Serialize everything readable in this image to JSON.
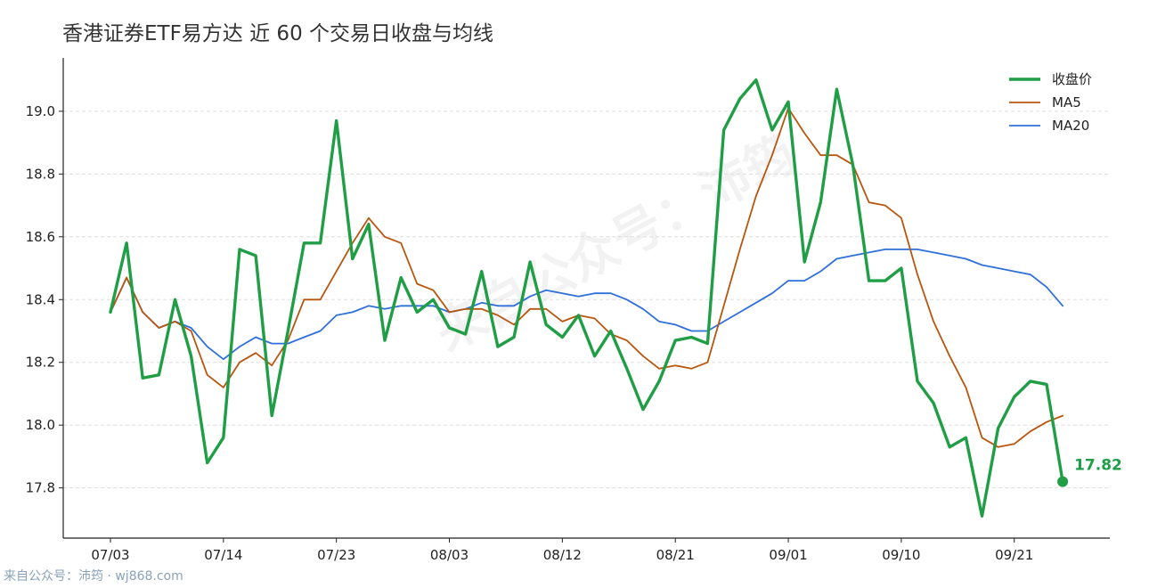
{
  "chart_data": {
    "type": "line",
    "title": "香港证券ETF易方达 近 60 个交易日收盘与均线",
    "xlabel": "",
    "ylabel": "",
    "ylim": [
      17.64,
      19.17
    ],
    "yticks": [
      17.8,
      18.0,
      18.2,
      18.4,
      18.6,
      18.8,
      19.0
    ],
    "xticks": [
      {
        "index": 0,
        "label": "07/03"
      },
      {
        "index": 7,
        "label": "07/14"
      },
      {
        "index": 14,
        "label": "07/23"
      },
      {
        "index": 21,
        "label": "08/03"
      },
      {
        "index": 28,
        "label": "08/12"
      },
      {
        "index": 35,
        "label": "08/21"
      },
      {
        "index": 42,
        "label": "09/01"
      },
      {
        "index": 49,
        "label": "09/10"
      },
      {
        "index": 56,
        "label": "09/21"
      }
    ],
    "grid": "horizontal dashed",
    "legend_position": "top-right",
    "series": [
      {
        "name": "收盘价",
        "color": "#1f9e46",
        "values": [
          18.36,
          18.58,
          18.15,
          18.16,
          18.4,
          18.22,
          17.88,
          17.96,
          18.56,
          18.54,
          18.03,
          18.3,
          18.58,
          18.58,
          18.97,
          18.53,
          18.64,
          18.27,
          18.47,
          18.36,
          18.4,
          18.31,
          18.29,
          18.49,
          18.25,
          18.28,
          18.52,
          18.32,
          18.28,
          18.35,
          18.22,
          18.3,
          18.18,
          18.05,
          18.14,
          18.27,
          18.28,
          18.26,
          18.94,
          19.04,
          19.1,
          18.94,
          19.03,
          18.52,
          18.71,
          19.07,
          18.83,
          18.46,
          18.46,
          18.5,
          18.14,
          18.07,
          17.93,
          17.96,
          17.71,
          17.99,
          18.09,
          18.14,
          18.13,
          17.82
        ]
      },
      {
        "name": "MA5",
        "color": "#b8560f",
        "values": [
          18.36,
          18.47,
          18.36,
          18.31,
          18.33,
          18.3,
          18.16,
          18.12,
          18.2,
          18.23,
          18.19,
          18.27,
          18.4,
          18.4,
          18.49,
          18.58,
          18.66,
          18.6,
          18.58,
          18.45,
          18.43,
          18.36,
          18.37,
          18.37,
          18.35,
          18.32,
          18.37,
          18.37,
          18.33,
          18.35,
          18.34,
          18.29,
          18.27,
          18.22,
          18.18,
          18.19,
          18.18,
          18.2,
          18.38,
          18.56,
          18.73,
          18.86,
          19.01,
          18.93,
          18.86,
          18.86,
          18.83,
          18.71,
          18.7,
          18.66,
          18.48,
          18.33,
          18.22,
          18.12,
          17.96,
          17.93,
          17.94,
          17.98,
          18.01,
          18.03
        ]
      },
      {
        "name": "MA20",
        "color": "#2f6fdc",
        "values": [
          18.36,
          18.47,
          18.36,
          18.31,
          18.33,
          18.31,
          18.25,
          18.21,
          18.25,
          18.28,
          18.26,
          18.26,
          18.28,
          18.3,
          18.35,
          18.36,
          18.38,
          18.37,
          18.38,
          18.38,
          18.38,
          18.36,
          18.37,
          18.39,
          18.38,
          18.38,
          18.41,
          18.43,
          18.42,
          18.41,
          18.42,
          18.42,
          18.4,
          18.37,
          18.33,
          18.32,
          18.3,
          18.3,
          18.33,
          18.36,
          18.39,
          18.42,
          18.46,
          18.46,
          18.49,
          18.53,
          18.54,
          18.55,
          18.56,
          18.56,
          18.56,
          18.55,
          18.54,
          18.53,
          18.51,
          18.5,
          18.49,
          18.48,
          18.44,
          18.38
        ]
      }
    ],
    "last_value_label": "17.82",
    "watermark": "来自公众号：沛筠"
  },
  "footer": {
    "text": "来自公众号：沛筠 · wj868.com"
  }
}
